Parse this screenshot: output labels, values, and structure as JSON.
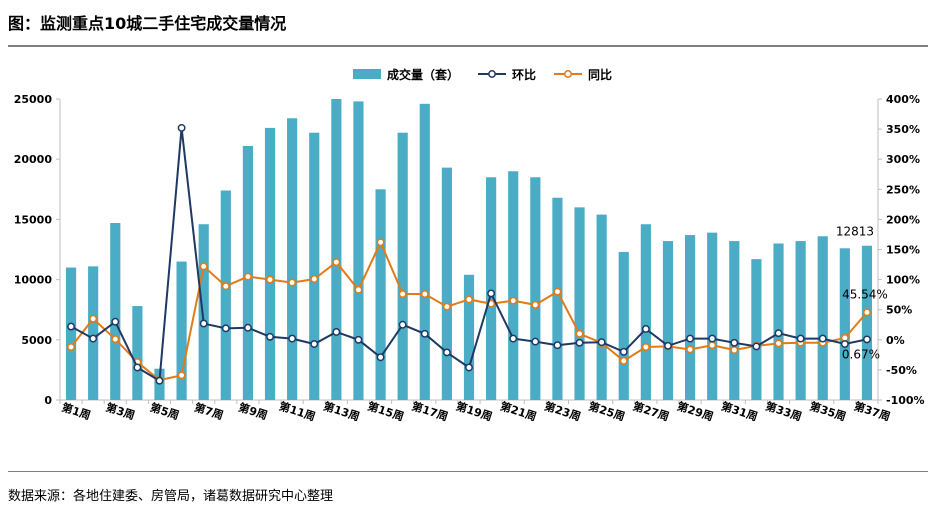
{
  "title": "图：监测重点10城二手住宅成交量情况",
  "source": "数据来源：各地住建委、房管局，诸葛数据研究中心整理",
  "colors": {
    "bar": "#4bacc6",
    "hb": "#1f3864",
    "tb": "#e07b17"
  },
  "chart_data": {
    "type": "bar",
    "title": "",
    "legend": [
      "成交量（套）",
      "环比",
      "同比"
    ],
    "legend_position": "top-center",
    "grid": false,
    "categories": [
      "第1周",
      "第2周",
      "第3周",
      "第4周",
      "第5周",
      "第6周",
      "第7周",
      "第8周",
      "第9周",
      "第10周",
      "第11周",
      "第12周",
      "第13周",
      "第14周",
      "第15周",
      "第16周",
      "第17周",
      "第18周",
      "第19周",
      "第20周",
      "第21周",
      "第22周",
      "第23周",
      "第24周",
      "第25周",
      "第26周",
      "第27周",
      "第28周",
      "第29周",
      "第30周",
      "第31周",
      "第32周",
      "第33周",
      "第34周",
      "第35周",
      "第36周",
      "第37周"
    ],
    "tick_labels": [
      "第1周",
      "第3周",
      "第5周",
      "第7周",
      "第9周",
      "第11周",
      "第13周",
      "第15周",
      "第17周",
      "第19周",
      "第21周",
      "第23周",
      "第25周",
      "第27周",
      "第29周",
      "第31周",
      "第33周",
      "第35周",
      "第37周"
    ],
    "y_left": {
      "lim": [
        0,
        25000
      ],
      "ticks": [
        "0",
        "5000",
        "10000",
        "15000",
        "20000",
        "25000"
      ]
    },
    "y_right": {
      "lim": [
        -100,
        400
      ],
      "ticks": [
        "-100%",
        "-50%",
        "0%",
        "50%",
        "100%",
        "150%",
        "200%",
        "250%",
        "300%",
        "350%",
        "400%"
      ]
    },
    "series": [
      {
        "name": "成交量（套）",
        "type": "bar",
        "axis": "left",
        "values": [
          11000,
          11100,
          14700,
          7800,
          2600,
          11500,
          14600,
          17400,
          21100,
          22600,
          23400,
          22200,
          25000,
          24800,
          17500,
          22200,
          24600,
          19300,
          10400,
          18500,
          19000,
          18500,
          16800,
          16000,
          15400,
          12300,
          14600,
          13200,
          13700,
          13900,
          13200,
          11700,
          13000,
          13200,
          13600,
          12600,
          12813
        ]
      },
      {
        "name": "环比",
        "type": "line",
        "axis": "right",
        "values": [
          22,
          2,
          30,
          -46,
          -68,
          352,
          27,
          19,
          20,
          5,
          2,
          -7,
          13,
          0,
          -29,
          25,
          10,
          -21,
          -46,
          77,
          2,
          -3,
          -9,
          -5,
          -4,
          -20,
          18,
          -10,
          2,
          2,
          -5,
          -11,
          11,
          2,
          2,
          -7,
          0.67
        ]
      },
      {
        "name": "同比",
        "type": "line",
        "axis": "right",
        "values": [
          -12,
          35,
          1,
          -37,
          -67,
          -59,
          122,
          89,
          105,
          100,
          95,
          101,
          129,
          83,
          162,
          76,
          76,
          55,
          67,
          60,
          65,
          58,
          80,
          10,
          -5,
          -35,
          -12,
          -11,
          -16,
          -9,
          -17,
          -10,
          -6,
          -5,
          -5,
          3,
          45.54
        ]
      }
    ],
    "annotations": [
      {
        "text": "12813",
        "series": "成交量（套）",
        "index": 36
      },
      {
        "text": "45.54%",
        "series": "同比",
        "index": 36
      },
      {
        "text": "0.67%",
        "series": "环比",
        "index": 36
      }
    ]
  }
}
